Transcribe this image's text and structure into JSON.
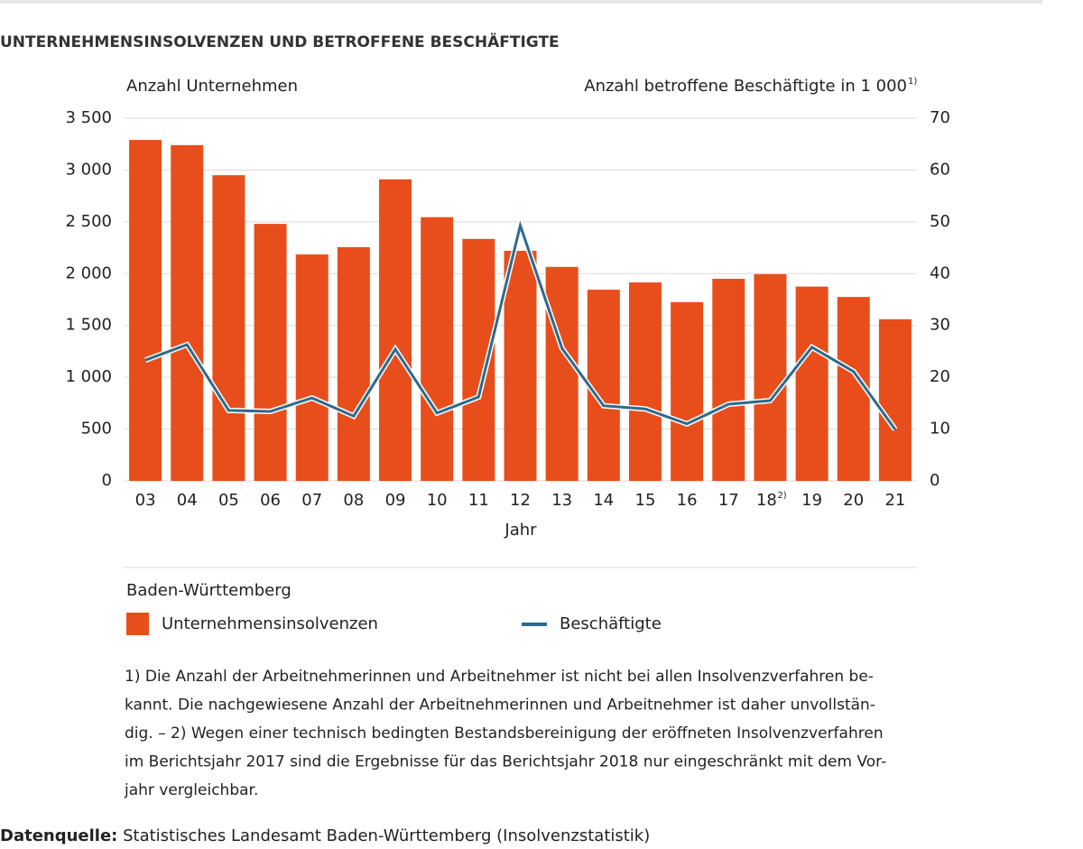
{
  "chart_data": {
    "type": "bar-line",
    "title": "UNTERNEHMENSINSOLVENZEN UND BETROFFENE BESCHÄFTIGTE",
    "y_label": "Anzahl Unternehmen",
    "y2_label": "Anzahl betroffene Beschäftigte in 1 000",
    "y2_label_note": "1)",
    "x_label": "Jahr",
    "categories": [
      "03",
      "04",
      "05",
      "06",
      "07",
      "08",
      "09",
      "10",
      "11",
      "12",
      "13",
      "14",
      "15",
      "16",
      "17",
      "18",
      "19",
      "20",
      "21"
    ],
    "category_notes": [
      null,
      null,
      null,
      null,
      null,
      null,
      null,
      null,
      null,
      null,
      null,
      null,
      null,
      null,
      null,
      "2)",
      null,
      null,
      null
    ],
    "series": [
      {
        "name": "Unternehmensinsolvenzen",
        "color": "#e84e1b",
        "type": "bar",
        "values": [
          3290,
          3240,
          2950,
          2480,
          2185,
          2255,
          2910,
          2545,
          2335,
          2220,
          2065,
          1845,
          1915,
          1725,
          1950,
          1995,
          1875,
          1775,
          1560
        ]
      },
      {
        "name": "Beschäftigte",
        "color": "#2e6a8e",
        "type": "line",
        "axis": "y2",
        "values": [
          23.3,
          26.3,
          13.6,
          13.4,
          16.0,
          12.5,
          25.4,
          13.1,
          16.2,
          49.3,
          25.6,
          14.5,
          13.9,
          11.0,
          14.8,
          15.5,
          25.8,
          21.1,
          9.9
        ]
      }
    ],
    "ylim": [
      0,
      3500
    ],
    "yticks": [
      0,
      500,
      {
        "value": 1000,
        "label": "1 000"
      },
      {
        "value": 1500,
        "label": "1 500"
      },
      {
        "value": 2000,
        "label": "2 000"
      },
      {
        "value": 2500,
        "label": "2 500"
      },
      {
        "value": 3000,
        "label": "3 000"
      },
      {
        "value": 3500,
        "label": "3 500"
      }
    ],
    "y2lim": [
      0,
      70
    ],
    "y2ticks": [
      0,
      10,
      20,
      30,
      40,
      50,
      60,
      70
    ],
    "grid": true,
    "legend_title": "Baden-Württemberg",
    "footnotes": [
      "1) Die Anzahl der Arbeitnehmerinnen und Arbeitnehmer ist nicht bei allen Insolvenzverfahren be-",
      "kannt. Die nachgewiesene Anzahl der Arbeitnehmerinnen und Arbeitnehmer ist daher unvollstän-",
      "dig. – 2) Wegen einer technisch bedingten Bestandsbereinigung der eröffneten Insolvenzverfahren",
      "im Berichtsjahr 2017 sind die Ergebnisse für das Berichtsjahr 2018 nur eingeschränkt mit dem Vor-",
      "jahr vergleichbar."
    ],
    "source_label": "Datenquelle:",
    "source": "Statistisches Landesamt Baden-Württemberg (Insolvenzstatistik)"
  }
}
